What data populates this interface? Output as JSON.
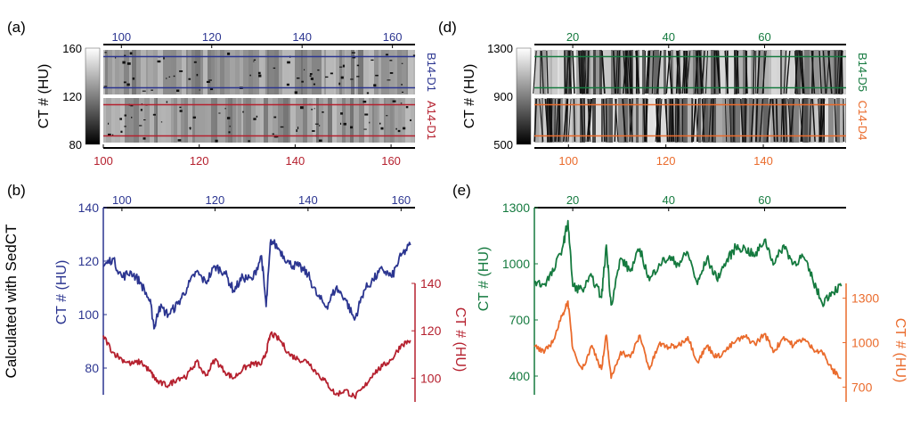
{
  "figure": {
    "shared_ylabel": "Calculated with SedCT",
    "colors": {
      "blue": "#2b3590",
      "red": "#b5202e",
      "green": "#157a3f",
      "orange": "#ea6b2c",
      "axis": "#000000"
    }
  },
  "chart_data": [
    {
      "panel": "a",
      "label": "(a)",
      "type": "heatmap",
      "top_axis_ticks": [
        "100",
        "120",
        "140",
        "160"
      ],
      "top_axis_range": [
        96,
        165
      ],
      "bottom_axis_ticks": [
        "100",
        "120",
        "140",
        "160"
      ],
      "bottom_axis_range": [
        100,
        165
      ],
      "colorbar": {
        "label": "CT # (HU)",
        "ticks": [
          "160",
          "120",
          "80"
        ],
        "range": [
          80,
          160
        ]
      },
      "strips": [
        {
          "name": "B14-D1",
          "color": "blue"
        },
        {
          "name": "A14-D1",
          "color": "red"
        }
      ]
    },
    {
      "panel": "b",
      "label": "(b)",
      "type": "line",
      "top_axis_ticks": [
        "100",
        "120",
        "140",
        "160"
      ],
      "x_range": [
        96,
        163
      ],
      "left_axis": {
        "label": "CT # (HU)",
        "ticks": [
          "140",
          "120",
          "100",
          "80"
        ],
        "range": [
          70,
          140
        ]
      },
      "right_axis": {
        "label": "CT # (HU)",
        "ticks": [
          "140",
          "120",
          "100"
        ],
        "range": [
          90,
          140
        ]
      },
      "series": [
        {
          "name": "B14-D1",
          "axis": "left",
          "color": "blue",
          "x": [
            96,
            98,
            100,
            102,
            104,
            106,
            107,
            108,
            110,
            112,
            114,
            116,
            118,
            120,
            122,
            124,
            126,
            128,
            130,
            131,
            132,
            134,
            136,
            138,
            140,
            142,
            144,
            146,
            148,
            150,
            152,
            154,
            156,
            158,
            160,
            162
          ],
          "y": [
            118,
            121,
            114,
            116,
            112,
            105,
            95,
            103,
            100,
            104,
            110,
            116,
            112,
            118,
            116,
            109,
            114,
            113,
            122,
            103,
            128,
            124,
            119,
            118,
            115,
            107,
            103,
            110,
            106,
            98,
            109,
            113,
            117,
            114,
            122,
            126
          ]
        },
        {
          "name": "A14-D1",
          "axis": "right",
          "color": "red",
          "x": [
            96,
            98,
            100,
            102,
            104,
            106,
            107,
            108,
            110,
            112,
            114,
            116,
            118,
            120,
            122,
            124,
            126,
            128,
            130,
            131,
            132,
            134,
            136,
            138,
            140,
            142,
            144,
            146,
            148,
            150,
            152,
            154,
            156,
            158,
            160,
            162
          ],
          "y": [
            118,
            111,
            108,
            106,
            107,
            103,
            100,
            98,
            97,
            100,
            101,
            107,
            101,
            108,
            103,
            100,
            104,
            106,
            106,
            111,
            119,
            116,
            110,
            108,
            107,
            102,
            98,
            93,
            95,
            92,
            96,
            102,
            105,
            108,
            114,
            116
          ]
        }
      ]
    },
    {
      "panel": "d",
      "label": "(d)",
      "type": "heatmap",
      "top_axis_ticks": [
        "20",
        "40",
        "60"
      ],
      "top_axis_range": [
        12,
        77
      ],
      "bottom_axis_ticks": [
        "100",
        "120",
        "140"
      ],
      "bottom_axis_range": [
        93,
        157
      ],
      "colorbar": {
        "label": "CT # (HU)",
        "ticks": [
          "1300",
          "900",
          "500"
        ],
        "range": [
          500,
          1300
        ]
      },
      "strips": [
        {
          "name": "B14-D5",
          "color": "green"
        },
        {
          "name": "C14-D4",
          "color": "orange"
        }
      ]
    },
    {
      "panel": "e",
      "label": "(e)",
      "type": "line",
      "top_axis_ticks": [
        "20",
        "40",
        "60"
      ],
      "x_range": [
        12,
        77
      ],
      "left_axis": {
        "label": "CT # (HU)",
        "ticks": [
          "1300",
          "1000",
          "700",
          "400"
        ],
        "range": [
          300,
          1300
        ]
      },
      "right_axis": {
        "label": "CT # (HU)",
        "ticks": [
          "1300",
          "1000",
          "700"
        ],
        "range": [
          600,
          1400
        ]
      },
      "series": [
        {
          "name": "B14-D5",
          "axis": "left",
          "color": "green",
          "x": [
            12,
            14,
            16,
            18,
            19,
            20,
            22,
            24,
            26,
            27,
            28,
            30,
            32,
            34,
            36,
            38,
            40,
            42,
            44,
            46,
            48,
            50,
            52,
            54,
            56,
            58,
            60,
            62,
            64,
            66,
            68,
            70,
            72,
            74,
            76
          ],
          "y": [
            900,
            890,
            960,
            1100,
            1230,
            880,
            860,
            930,
            820,
            1100,
            780,
            1030,
            960,
            1080,
            910,
            1000,
            1030,
            1000,
            1060,
            890,
            1030,
            920,
            1010,
            1090,
            1080,
            1040,
            1130,
            1000,
            1100,
            1000,
            1040,
            920,
            790,
            850,
            880
          ]
        },
        {
          "name": "C14-D4",
          "axis": "right",
          "color": "orange",
          "x": [
            12,
            14,
            16,
            18,
            19,
            20,
            22,
            24,
            26,
            27,
            28,
            30,
            32,
            34,
            36,
            38,
            40,
            42,
            44,
            46,
            48,
            50,
            52,
            54,
            56,
            58,
            60,
            62,
            64,
            66,
            68,
            70,
            72,
            74,
            76
          ],
          "y": [
            980,
            930,
            1020,
            1200,
            1280,
            960,
            820,
            980,
            820,
            1050,
            760,
            940,
            900,
            1050,
            820,
            990,
            970,
            980,
            1040,
            870,
            980,
            900,
            950,
            1010,
            1040,
            990,
            1060,
            940,
            1040,
            980,
            1030,
            960,
            940,
            820,
            760
          ]
        }
      ]
    }
  ]
}
